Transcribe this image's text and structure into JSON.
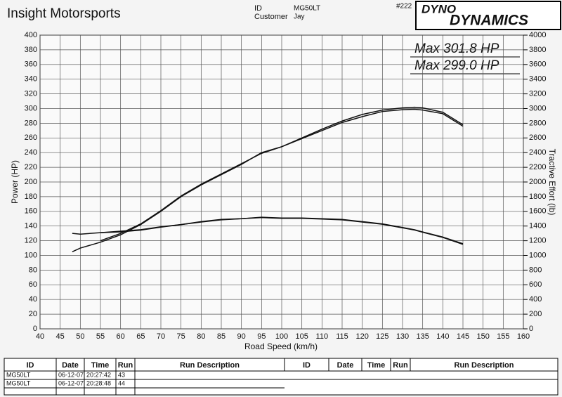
{
  "header": {
    "title": "Insight Motorsports",
    "id_label": "ID",
    "id": "MG50LT",
    "customer_label": "Customer",
    "customer": "Jay",
    "number": "#222",
    "logo_line1": "DYNO",
    "logo_line2": "DYNAMICS"
  },
  "chart_data": {
    "type": "line",
    "xlabel": "Road Speed (km/h)",
    "ylabel": "Power (HP)",
    "y2label": "Tractive Effort (lb)",
    "annotations": [
      "Max 301.8 HP",
      "Max 299.0 HP"
    ],
    "x": [
      48,
      50,
      55,
      60,
      65,
      70,
      75,
      80,
      85,
      90,
      95,
      100,
      105,
      110,
      115,
      120,
      125,
      130,
      133,
      135,
      140,
      145
    ],
    "series": [
      {
        "color": "#111111",
        "values": [
          105,
          110,
          118,
          128,
          142,
          160,
          180,
          196,
          210,
          224,
          240,
          248,
          260,
          272,
          283,
          292,
          298,
          301,
          301.8,
          301,
          295,
          278
        ]
      },
      {
        "color": "#111111",
        "values": [
          null,
          null,
          120,
          130,
          143,
          161,
          181,
          197,
          211,
          225,
          239,
          248,
          259,
          270,
          281,
          289,
          296,
          298.5,
          299,
          298,
          293,
          276
        ]
      },
      {
        "color": "#111111",
        "axis": "y2",
        "values": [
          1300,
          1290,
          1310,
          1330,
          1350,
          1390,
          1420,
          1460,
          1490,
          1500,
          1520,
          1510,
          1510,
          1500,
          1490,
          1460,
          1430,
          1380,
          1350,
          1320,
          1250,
          1160
        ]
      },
      {
        "color": "#111111",
        "axis": "y2",
        "values": [
          null,
          null,
          1310,
          1320,
          1345,
          1385,
          1420,
          1455,
          1485,
          1500,
          1515,
          1505,
          1505,
          1495,
          1485,
          1455,
          1425,
          1375,
          1345,
          1315,
          1245,
          1150
        ]
      }
    ],
    "xlim": [
      40,
      160
    ],
    "xticks": [
      40,
      45,
      50,
      55,
      60,
      65,
      70,
      75,
      80,
      85,
      90,
      95,
      100,
      105,
      110,
      115,
      120,
      125,
      130,
      135,
      140,
      145,
      150,
      155,
      160
    ],
    "ylim": [
      0,
      400
    ],
    "yticks": [
      0,
      20,
      40,
      60,
      80,
      100,
      120,
      140,
      160,
      180,
      200,
      220,
      240,
      260,
      280,
      300,
      320,
      340,
      360,
      380,
      400
    ],
    "y2lim": [
      0,
      4000
    ],
    "y2ticks": [
      0,
      200,
      400,
      600,
      800,
      1000,
      1200,
      1400,
      1600,
      1800,
      2000,
      2200,
      2400,
      2600,
      2800,
      3000,
      3200,
      3400,
      3600,
      3800,
      4000
    ],
    "grid": true
  },
  "table": {
    "columns": [
      "ID",
      "Date",
      "Time",
      "Run",
      "Run Description",
      "ID",
      "Date",
      "Time",
      "Run",
      "Run Description"
    ],
    "rows": [
      [
        "MG50LT",
        "06-12-07",
        "20:27:42",
        "43"
      ],
      [
        "MG50LT",
        "06-12-07",
        "20:28:48",
        "44"
      ]
    ]
  }
}
